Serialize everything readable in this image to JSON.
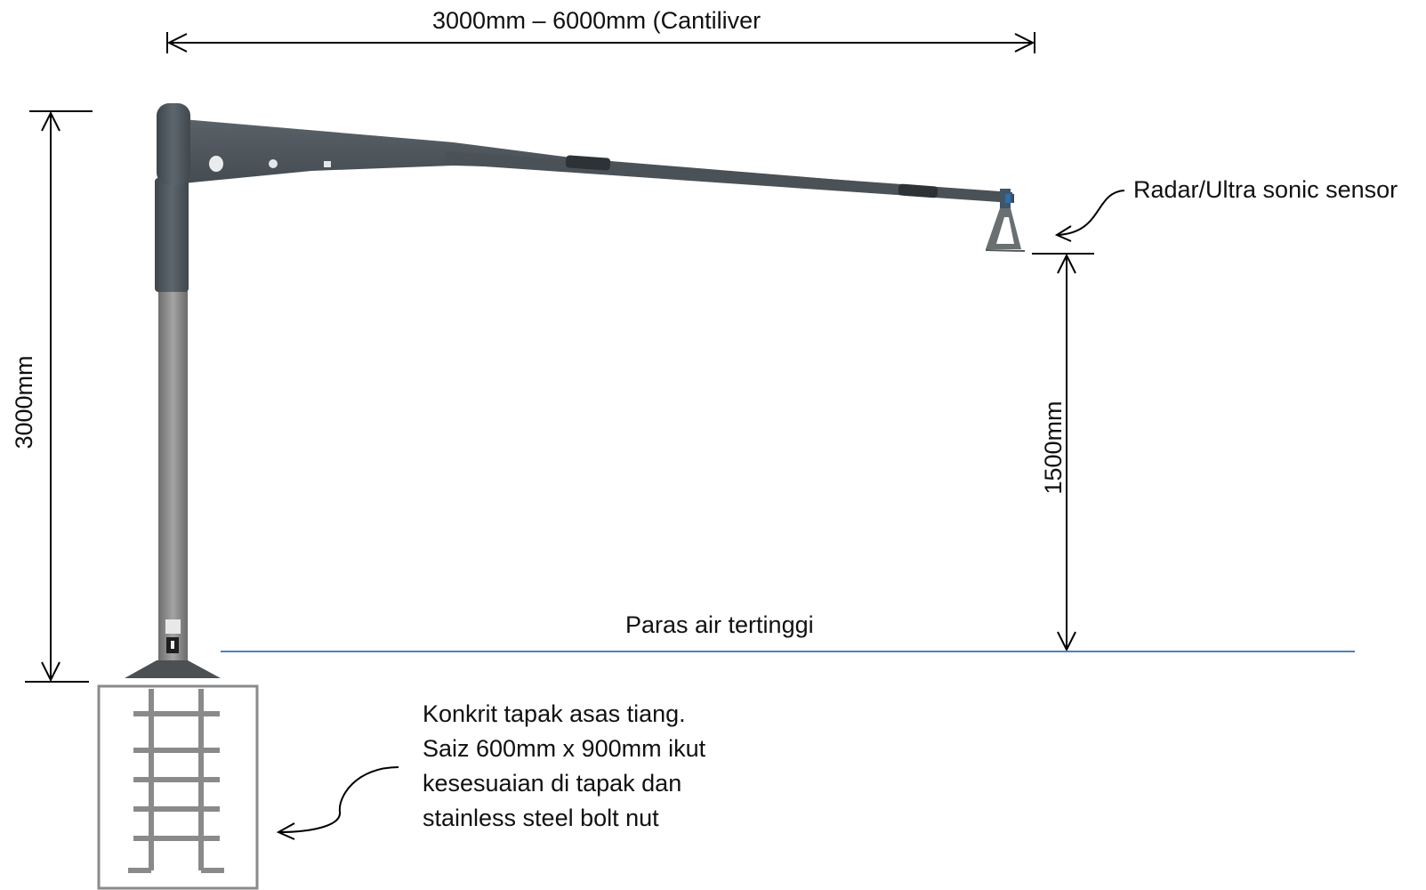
{
  "dimensions": {
    "cantilever_span": "3000mm  –  6000mm (Cantiliver",
    "pole_height": "3000mm",
    "sensor_clearance": "1500mm"
  },
  "labels": {
    "sensor": "Radar/Ultra sonic sensor",
    "water_level": "Paras air tertinggi"
  },
  "foundation_note": {
    "lines": [
      "Konkrit tapak asas tiang.",
      "Saiz 600mm x 900mm ikut",
      "kesesuaian di  tapak dan",
      "stainless steel  bolt nut"
    ]
  },
  "colors": {
    "pole_upper": "#4d555c",
    "pole_lower": "#8a8a8a",
    "water_line": "#4f7fc0",
    "rebar": "#8a8a8a",
    "ink": "#000000"
  }
}
